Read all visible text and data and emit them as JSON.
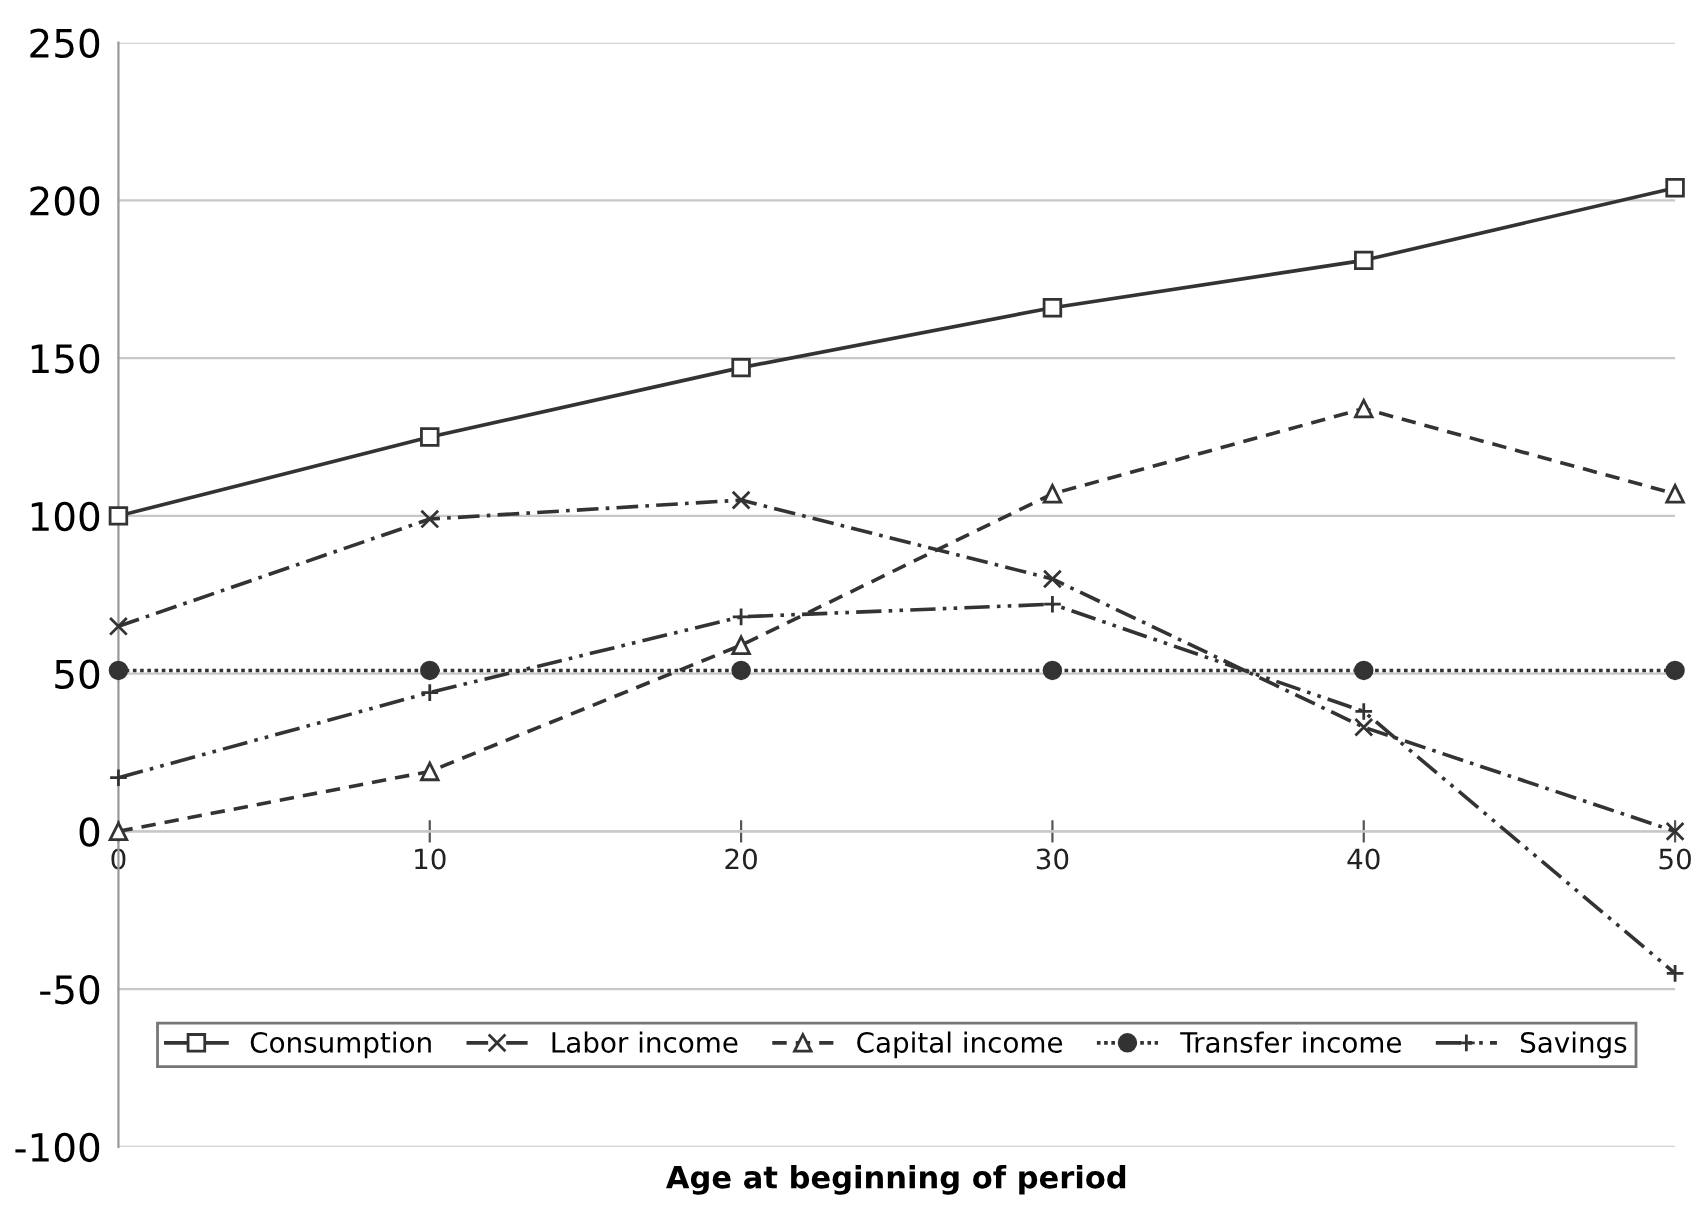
{
  "chart_data": {
    "type": "line",
    "xlabel": "Age at beginning of period",
    "x": [
      0,
      10,
      20,
      30,
      40,
      50
    ],
    "series": [
      {
        "name": "Consumption",
        "color": "#333333",
        "marker": "square",
        "line_style": "solid",
        "values": [
          100,
          125,
          147,
          166,
          181,
          204
        ]
      },
      {
        "name": "Labor income",
        "color": "#333333",
        "marker": "cross",
        "line_style": "dashdot",
        "values": [
          65,
          99,
          105,
          80,
          33,
          0
        ]
      },
      {
        "name": "Capital income",
        "color": "#333333",
        "marker": "triangle",
        "line_style": "dashed",
        "values": [
          0,
          19,
          59,
          107,
          134,
          107
        ]
      },
      {
        "name": "Transfer income",
        "color": "#333333",
        "marker": "circle",
        "line_style": "dotted",
        "values": [
          51,
          51,
          51,
          51,
          51,
          51
        ]
      },
      {
        "name": "Savings",
        "color": "#333333",
        "marker": "plus",
        "line_style": "dashdotdot",
        "values": [
          17,
          44,
          68,
          72,
          38,
          -45
        ]
      }
    ],
    "xlim": [
      0,
      50
    ],
    "xticks": [
      0,
      10,
      20,
      30,
      40,
      50
    ],
    "ylim": [
      -100,
      250
    ],
    "yticks": [
      -100,
      -50,
      0,
      50,
      100,
      150,
      200,
      250
    ],
    "grid": "y",
    "legend": "bottom"
  }
}
